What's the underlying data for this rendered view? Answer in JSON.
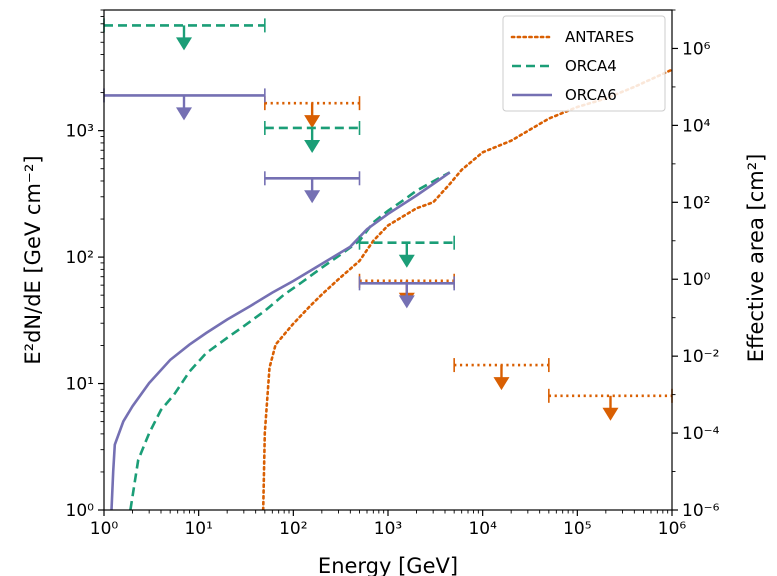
{
  "chart_data": {
    "type": "line",
    "xlabel": "Energy [GeV]",
    "ylabel_left": "E²dN/dE [GeV cm⁻²]",
    "ylabel_right": "Effective area [cm²]",
    "x_scale": "log",
    "y_left_scale": "log",
    "y_right_scale": "log",
    "xlim": [
      1,
      1000000
    ],
    "ylim_left": [
      1,
      9000
    ],
    "ylim_right": [
      1e-06,
      10000000
    ],
    "grid": false,
    "legend_position": "top-right",
    "x_ticks": [
      "10⁰",
      "10¹",
      "10²",
      "10³",
      "10⁴",
      "10⁵",
      "10⁶"
    ],
    "y_left_ticks": [
      "10⁰",
      "10¹",
      "10²",
      "10³"
    ],
    "y_right_ticks": [
      "10⁻⁶",
      "10⁻⁴",
      "10⁻²",
      "10⁰",
      "10²",
      "10⁴",
      "10⁶"
    ],
    "series": [
      {
        "name": "ANTARES",
        "color": "#d95f02",
        "style": "dotted",
        "effective_area": [
          [
            48,
            1e-06
          ],
          [
            50,
            0.0001
          ],
          [
            56,
            0.005
          ],
          [
            65,
            0.02
          ],
          [
            100,
            0.07
          ],
          [
            150,
            0.2
          ],
          [
            200,
            0.4
          ],
          [
            300,
            1.0
          ],
          [
            500,
            3
          ],
          [
            700,
            10
          ],
          [
            1000,
            25
          ],
          [
            2000,
            70
          ],
          [
            3000,
            100
          ],
          [
            4500,
            300
          ],
          [
            6000,
            700
          ],
          [
            10000,
            2000
          ],
          [
            20000,
            4000
          ],
          [
            50000,
            15000
          ],
          [
            100000,
            30000
          ],
          [
            200000,
            50000
          ],
          [
            400000,
            100000
          ],
          [
            1000000,
            280000
          ]
        ],
        "upper_limits": [
          {
            "e_min": 50,
            "e_max": 500,
            "e_center": 158,
            "value": 1650
          },
          {
            "e_min": 500,
            "e_max": 5000,
            "e_center": 1580,
            "value": 65
          },
          {
            "e_min": 5000,
            "e_max": 50000,
            "e_center": 15800,
            "value": 14
          },
          {
            "e_min": 50000,
            "e_max": 1000000,
            "e_center": 224000,
            "value": 8
          }
        ]
      },
      {
        "name": "ORCA4",
        "color": "#1b9e77",
        "style": "dashed",
        "effective_area": [
          [
            1.9,
            1e-06
          ],
          [
            2.3,
            2e-05
          ],
          [
            3,
            0.0001
          ],
          [
            4,
            0.0004
          ],
          [
            5.5,
            0.001
          ],
          [
            8,
            0.004
          ],
          [
            12,
            0.012
          ],
          [
            20,
            0.03
          ],
          [
            30,
            0.06
          ],
          [
            50,
            0.15
          ],
          [
            80,
            0.4
          ],
          [
            120,
            0.8
          ],
          [
            200,
            2
          ],
          [
            300,
            4
          ],
          [
            500,
            10
          ],
          [
            700,
            30
          ],
          [
            1000,
            60
          ],
          [
            1500,
            120
          ],
          [
            2000,
            200
          ],
          [
            3000,
            350
          ],
          [
            4500,
            600
          ]
        ],
        "upper_limits": [
          {
            "e_min": 1,
            "e_max": 50,
            "e_center": 7,
            "value": 6800
          },
          {
            "e_min": 50,
            "e_max": 500,
            "e_center": 158,
            "value": 1050
          },
          {
            "e_min": 500,
            "e_max": 5000,
            "e_center": 1580,
            "value": 130
          }
        ]
      },
      {
        "name": "ORCA6",
        "color": "#7570b3",
        "style": "solid",
        "effective_area": [
          [
            1.2,
            1e-06
          ],
          [
            1.25,
            1e-05
          ],
          [
            1.3,
            5e-05
          ],
          [
            1.6,
            0.0002
          ],
          [
            2,
            0.0005
          ],
          [
            3,
            0.002
          ],
          [
            5,
            0.008
          ],
          [
            8,
            0.02
          ],
          [
            12,
            0.04
          ],
          [
            20,
            0.09
          ],
          [
            35,
            0.2
          ],
          [
            60,
            0.45
          ],
          [
            100,
            0.9
          ],
          [
            200,
            2.5
          ],
          [
            400,
            7
          ],
          [
            600,
            20
          ],
          [
            1000,
            50
          ],
          [
            2000,
            150
          ],
          [
            3000,
            300
          ],
          [
            4500,
            600
          ]
        ],
        "upper_limits": [
          {
            "e_min": 1,
            "e_max": 50,
            "e_center": 7,
            "value": 1900
          },
          {
            "e_min": 50,
            "e_max": 500,
            "e_center": 158,
            "value": 420
          },
          {
            "e_min": 500,
            "e_max": 5000,
            "e_center": 1580,
            "value": 62
          }
        ]
      }
    ]
  }
}
